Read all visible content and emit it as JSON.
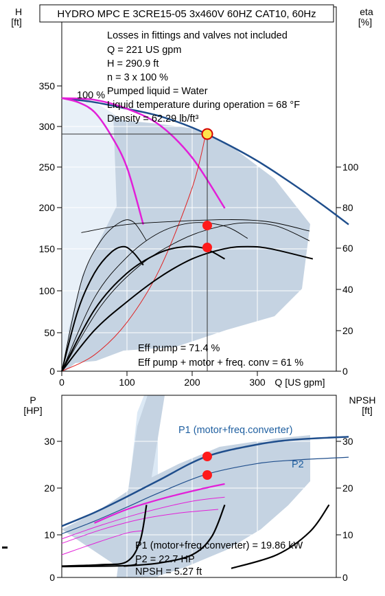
{
  "chart_data": [
    {
      "type": "line",
      "title": "HYDRO MPC E 3CRE15-05 3x460V 60HZ CAT10, 60Hz",
      "xlabel": "Q [US gpm]",
      "ylabel": "H",
      "ylabel_unit": "[ft]",
      "y2label": "eta",
      "y2label_unit": "[%]",
      "xlim": [
        0,
        500
      ],
      "ylim": [
        0,
        375
      ],
      "y2lim": [
        0,
        125
      ],
      "xticks": [
        "0",
        "100",
        "200",
        "300"
      ],
      "yticks": [
        "0",
        "50",
        "100",
        "150",
        "200",
        "250",
        "300",
        "350"
      ],
      "y2ticks": [
        "0",
        "20",
        "40",
        "60",
        "80",
        "100"
      ],
      "curve_label": "100 %",
      "info_lines": [
        "Losses in fittings and valves not included",
        "Q = 221 US gpm",
        "H = 290.9 ft",
        "n = 3 x 100 %",
        "Pumped liquid = Water",
        "Liquid temperature during operation = 68 °F",
        "Density = 62.29 lb/ft³"
      ],
      "efficiency_lines": [
        "Eff pump = 71.4 %",
        "Eff pump + motor + freq. conv = 61 %"
      ],
      "duty_point": {
        "x": 221,
        "y": 290.9
      },
      "marker_points_eta": [
        71.4,
        61
      ],
      "series": [
        {
          "role": "head-max",
          "color": "#1f4e8c",
          "x": [
            0,
            50,
            100,
            150,
            200,
            250,
            300,
            350,
            400,
            440
          ],
          "y": [
            335,
            330,
            322,
            313,
            299,
            280,
            258,
            232,
            204,
            180
          ]
        },
        {
          "role": "head-1-pump",
          "color": "#e21fd8",
          "x": [
            0,
            25,
            50,
            75,
            100,
            125
          ],
          "y": [
            335,
            330,
            318,
            290,
            250,
            180
          ]
        },
        {
          "role": "head-2-pumps",
          "color": "#e21fd8",
          "x": [
            0,
            50,
            100,
            150,
            200,
            250
          ],
          "y": [
            335,
            333,
            322,
            302,
            262,
            200
          ]
        },
        {
          "role": "system-curve",
          "color": "#e02020",
          "x": [
            0,
            50,
            100,
            150,
            200,
            221
          ],
          "y": [
            0,
            20,
            60,
            125,
            225,
            290.9
          ]
        },
        {
          "role": "eta-1-pump",
          "color": "#000000",
          "axis": "y2",
          "x": [
            0,
            25,
            50,
            75,
            95,
            110,
            125
          ],
          "y": [
            0,
            30,
            48,
            58,
            61,
            58,
            52
          ]
        },
        {
          "role": "eta-2-pumps",
          "color": "#000000",
          "axis": "y2",
          "x": [
            0,
            50,
            100,
            150,
            190,
            220,
            250
          ],
          "y": [
            0,
            30,
            48,
            58,
            61,
            60,
            55
          ]
        },
        {
          "role": "eta-3-pumps",
          "color": "#000000",
          "axis": "y2",
          "x": [
            0,
            50,
            100,
            150,
            200,
            250,
            285,
            320,
            385
          ],
          "y": [
            0,
            20,
            34,
            46,
            55,
            60,
            61,
            60,
            55
          ]
        }
      ]
    },
    {
      "type": "line",
      "ylabel": "P",
      "ylabel_unit": "[HP]",
      "y2label": "NPSH",
      "y2label_unit": "[ft]",
      "xlim": [
        0,
        500
      ],
      "ylim": [
        0,
        38
      ],
      "y2lim": [
        0,
        38
      ],
      "yticks": [
        "0",
        "10",
        "20",
        "30"
      ],
      "y2ticks": [
        "0",
        "10",
        "20",
        "30"
      ],
      "p1_label": "P1 (motor+freq.converter)",
      "p2_label": "P2",
      "info_lines": [
        "P1 (motor+freq.converter) = 19.86 kW",
        "P2 = 22.7 HP",
        "NPSH = 5.27 ft"
      ],
      "marker_points": [
        26.6,
        22.7
      ],
      "series": [
        {
          "role": "P1",
          "color": "#1f4e8c",
          "x": [
            0,
            50,
            100,
            150,
            221,
            300,
            360,
            440
          ],
          "y": [
            11.3,
            14.3,
            17.8,
            21.5,
            26.6,
            29.3,
            30.4,
            31
          ]
        },
        {
          "role": "P2",
          "color": "#1f4e8c",
          "x": [
            0,
            50,
            100,
            150,
            221,
            300,
            360,
            440
          ],
          "y": [
            9.6,
            12.4,
            15.5,
            18.7,
            22.7,
            25.1,
            25.9,
            26.5
          ]
        }
      ]
    }
  ]
}
